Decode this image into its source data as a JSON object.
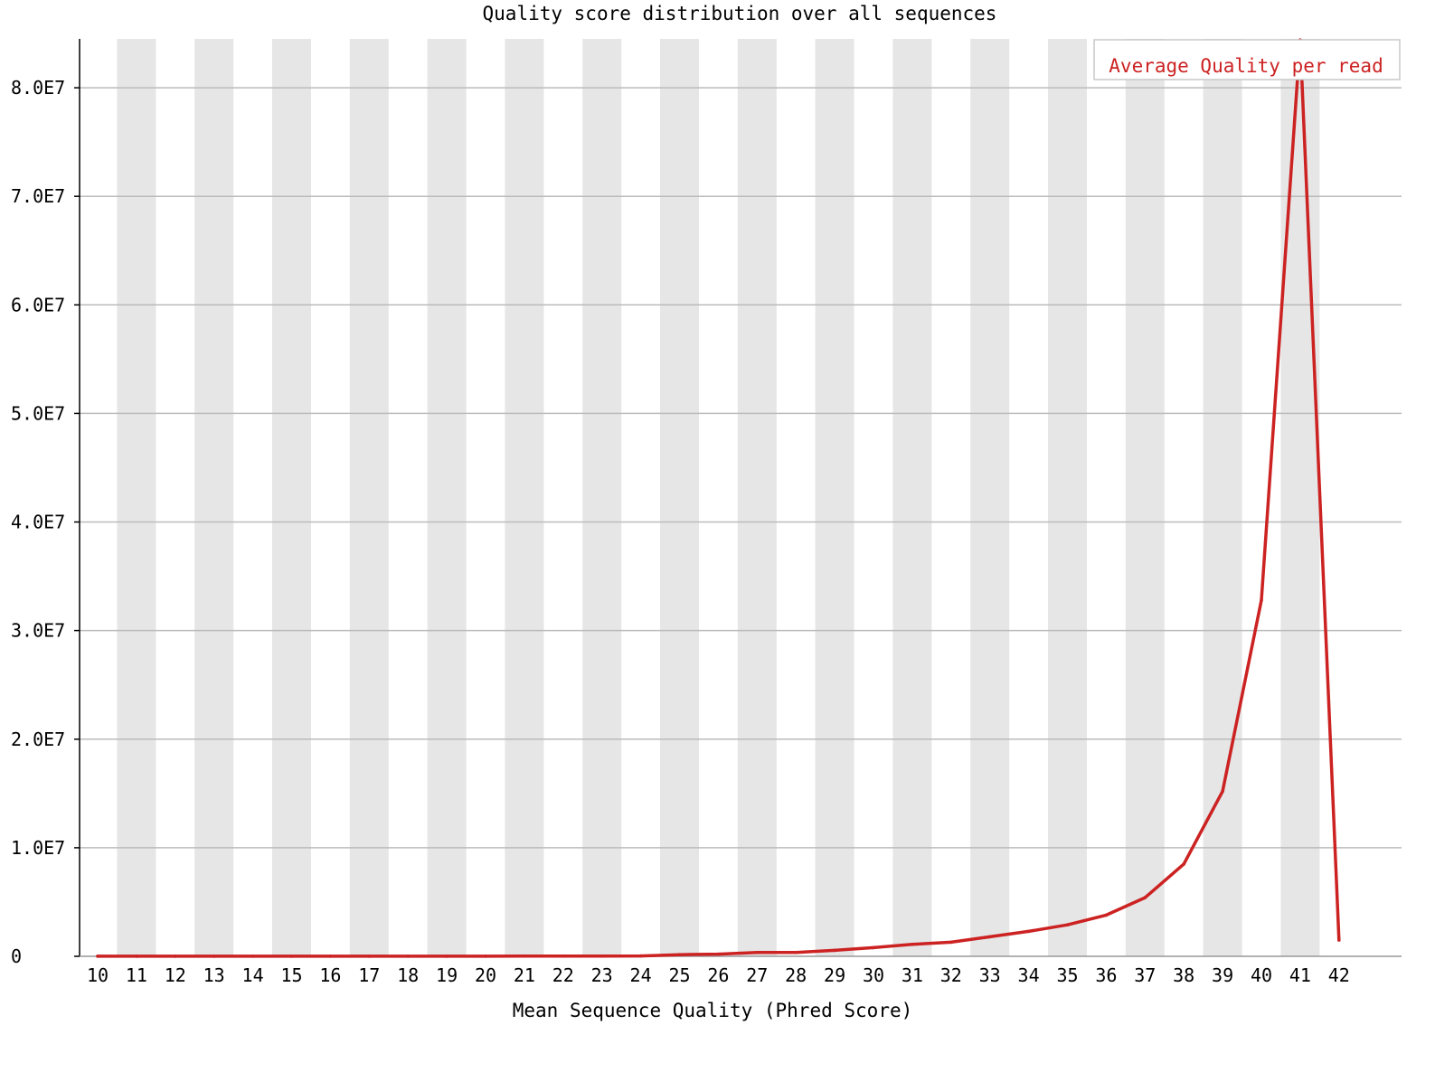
{
  "chart_data": {
    "type": "line",
    "title": "Quality score distribution over all sequences",
    "xlabel": "Mean Sequence Quality (Phred Score)",
    "ylabel": "",
    "x": [
      10,
      11,
      12,
      13,
      14,
      15,
      16,
      17,
      18,
      19,
      20,
      21,
      22,
      23,
      24,
      25,
      26,
      27,
      28,
      29,
      30,
      31,
      32,
      33,
      34,
      35,
      36,
      37,
      38,
      39,
      40,
      41,
      42
    ],
    "ylim": [
      0,
      84500000
    ],
    "yticks": [
      0,
      10000000,
      20000000,
      30000000,
      40000000,
      50000000,
      60000000,
      70000000,
      80000000
    ],
    "ytick_labels": [
      "0",
      "1.0E7",
      "2.0E7",
      "3.0E7",
      "4.0E7",
      "5.0E7",
      "6.0E7",
      "7.0E7",
      "8.0E7"
    ],
    "series": [
      {
        "name": "Average Quality per read",
        "color": "#cc2222",
        "values": [
          5000,
          5000,
          5000,
          5000,
          5000,
          10000,
          10000,
          10000,
          10000,
          10000,
          10000,
          20000,
          20000,
          20000,
          30000,
          150000,
          200000,
          350000,
          350000,
          550000,
          800000,
          1100000,
          1300000,
          1800000,
          2300000,
          2900000,
          3800000,
          5400000,
          8500000,
          15200000,
          32800000,
          84400000,
          1500000
        ]
      }
    ],
    "grid": true,
    "legend_position": "top-right",
    "band_color": "#e6e6e6",
    "grid_color": "#bbbbbb",
    "axis_color": "#000000"
  }
}
